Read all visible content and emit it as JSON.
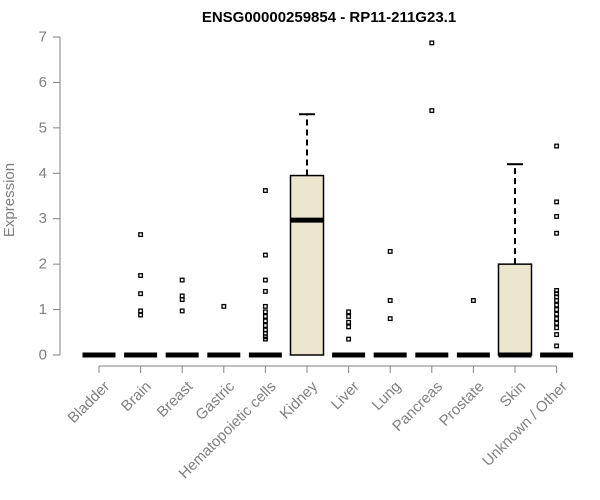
{
  "chart_data": {
    "type": "box",
    "title": "ENSG00000259854 - RP11-211G23.1",
    "ylabel": "Expression",
    "xlabel": "",
    "ylim": [
      0,
      7
    ],
    "yticks": [
      0,
      1,
      2,
      3,
      4,
      5,
      6,
      7
    ],
    "grid": false,
    "box_fill": "#ede6cf",
    "categories": [
      "Bladder",
      "Brain",
      "Breast",
      "Gastric",
      "Hematopoietic cells",
      "Kidney",
      "Liver",
      "Lung",
      "Pancreas",
      "Prostate",
      "Skin",
      "Unknown / Other"
    ],
    "boxes": [
      {
        "q1": 0,
        "median": 0,
        "q3": 0,
        "whisker_low": 0,
        "whisker_high": 0,
        "outliers": []
      },
      {
        "q1": 0,
        "median": 0,
        "q3": 0,
        "whisker_low": 0,
        "whisker_high": 0,
        "outliers": [
          2.65,
          1.75,
          1.35,
          0.97,
          0.88
        ]
      },
      {
        "q1": 0,
        "median": 0,
        "q3": 0,
        "whisker_low": 0,
        "whisker_high": 0,
        "outliers": [
          1.65,
          1.3,
          1.22,
          0.97
        ]
      },
      {
        "q1": 0,
        "median": 0,
        "q3": 0,
        "whisker_low": 0,
        "whisker_high": 0,
        "outliers": [
          1.07
        ]
      },
      {
        "q1": 0,
        "median": 0,
        "q3": 0,
        "whisker_low": 0,
        "whisker_high": 0,
        "outliers": [
          3.62,
          2.2,
          1.65,
          1.4,
          1.07,
          0.95,
          0.85,
          0.75,
          0.65,
          0.55,
          0.48,
          0.4,
          0.35
        ]
      },
      {
        "q1": 0,
        "median": 2.97,
        "q3": 3.95,
        "whisker_low": 0,
        "whisker_high": 5.3,
        "outliers": []
      },
      {
        "q1": 0,
        "median": 0,
        "q3": 0,
        "whisker_low": 0,
        "whisker_high": 0,
        "outliers": [
          0.95,
          0.85,
          0.72,
          0.62,
          0.35
        ]
      },
      {
        "q1": 0,
        "median": 0,
        "q3": 0,
        "whisker_low": 0,
        "whisker_high": 0,
        "outliers": [
          2.28,
          1.2,
          0.8
        ]
      },
      {
        "q1": 0,
        "median": 0,
        "q3": 0,
        "whisker_low": 0,
        "whisker_high": 0,
        "outliers": [
          6.87,
          5.38
        ]
      },
      {
        "q1": 0,
        "median": 0,
        "q3": 0,
        "whisker_low": 0,
        "whisker_high": 0,
        "outliers": [
          1.2
        ]
      },
      {
        "q1": 0,
        "median": 0,
        "q3": 2.0,
        "whisker_low": 0,
        "whisker_high": 4.2,
        "outliers": []
      },
      {
        "q1": 0,
        "median": 0,
        "q3": 0,
        "whisker_low": 0,
        "whisker_high": 0,
        "outliers": [
          4.6,
          3.37,
          3.05,
          2.68,
          1.42,
          1.35,
          1.28,
          1.2,
          1.1,
          1.0,
          0.9,
          0.8,
          0.7,
          0.6,
          0.45,
          0.2
        ]
      }
    ]
  }
}
